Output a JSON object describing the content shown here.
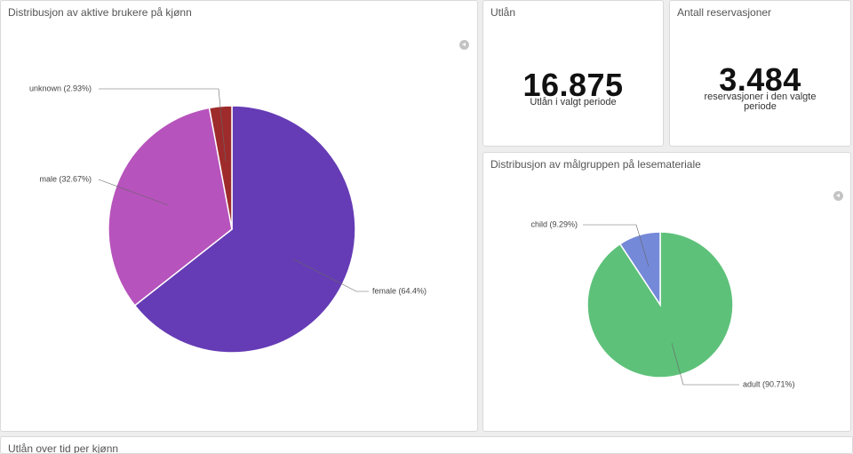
{
  "gender_panel": {
    "title": "Distribusjon av aktive brukere på kjønn"
  },
  "loans_panel": {
    "title": "Utlån",
    "value": "16.875",
    "subtitle": "Utlån i valgt periode"
  },
  "reservations_panel": {
    "title": "Antall reservasjoner",
    "value": "3.484",
    "subtitle": "reservasjoner i den valgte periode"
  },
  "target_panel": {
    "title": "Distribusjon av målgruppen på lesemateriale"
  },
  "bottom_panel": {
    "title": "Utlån over tid per kjønn"
  },
  "chart_data": [
    {
      "type": "pie",
      "title": "Distribusjon av aktive brukere på kjønn",
      "labels": [
        "female",
        "male",
        "unknown"
      ],
      "values": [
        64.4,
        32.67,
        2.93
      ],
      "slice_labels": [
        "female (64.4%)",
        "male (32.67%)",
        "unknown (2.93%)"
      ],
      "colors": [
        "#653cb5",
        "#b753bc",
        "#9e2b2b"
      ]
    },
    {
      "type": "pie",
      "title": "Distribusjon av målgruppen på lesemateriale",
      "labels": [
        "adult",
        "child"
      ],
      "values": [
        90.71,
        9.29
      ],
      "slice_labels": [
        "adult (90.71%)",
        "child (9.29%)"
      ],
      "colors": [
        "#5ec17a",
        "#7489d8"
      ]
    }
  ]
}
